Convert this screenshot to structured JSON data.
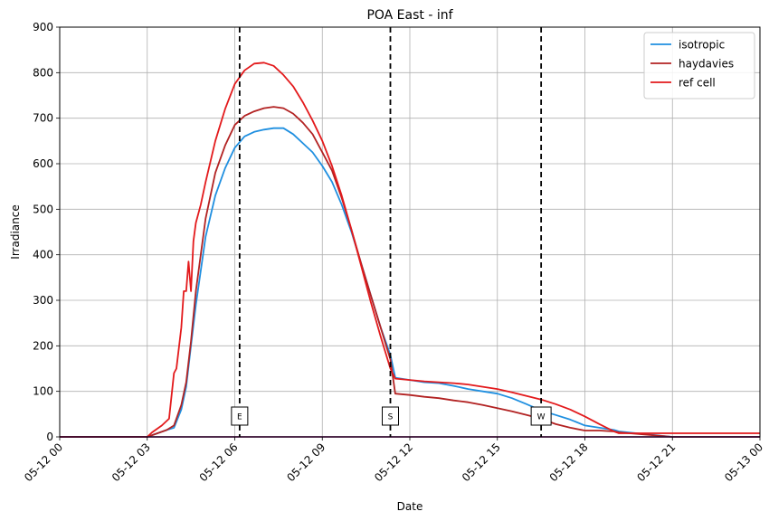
{
  "chart_data": {
    "type": "line",
    "title": "POA East - inf",
    "xlabel": "Date",
    "ylabel": "Irradiance",
    "xlim": [
      "05-12 00:00",
      "05-13 00:00"
    ],
    "ylim": [
      0,
      900
    ],
    "grid": true,
    "legend_position": "top-right",
    "x_ticks": [
      "05-12 00",
      "05-12 03",
      "05-12 06",
      "05-12 09",
      "05-12 12",
      "05-12 15",
      "05-12 18",
      "05-12 21",
      "05-13 00"
    ],
    "y_ticks": [
      0,
      100,
      200,
      300,
      400,
      500,
      600,
      700,
      800,
      900
    ],
    "vertical_markers": [
      {
        "label": "E",
        "x": "05-12 06:10"
      },
      {
        "label": "S",
        "x": "05-12 11:20"
      },
      {
        "label": "W",
        "x": "05-12 16:30"
      }
    ],
    "series": [
      {
        "name": "isotropic",
        "color": "#1f8fe0",
        "x": [
          "05-12 00:00",
          "05-12 03:00",
          "05-12 03:40",
          "05-12 03:55",
          "05-12 04:10",
          "05-12 04:20",
          "05-12 04:30",
          "05-12 04:40",
          "05-12 05:00",
          "05-12 05:20",
          "05-12 05:40",
          "05-12 06:00",
          "05-12 06:20",
          "05-12 06:40",
          "05-12 07:00",
          "05-12 07:20",
          "05-12 07:40",
          "05-12 08:00",
          "05-12 08:20",
          "05-12 08:40",
          "05-12 09:00",
          "05-12 09:20",
          "05-12 09:40",
          "05-12 10:00",
          "05-12 10:20",
          "05-12 10:40",
          "05-12 11:00",
          "05-12 11:20",
          "05-12 11:30",
          "05-12 12:00",
          "05-12 12:30",
          "05-12 13:00",
          "05-12 13:30",
          "05-12 14:00",
          "05-12 14:30",
          "05-12 15:00",
          "05-12 15:30",
          "05-12 16:00",
          "05-12 16:30",
          "05-12 17:00",
          "05-12 17:30",
          "05-12 18:00",
          "05-12 18:30",
          "05-12 19:00",
          "05-12 19:10",
          "05-12 21:00",
          "05-13 00:00"
        ],
        "y": [
          0,
          0,
          15,
          20,
          60,
          110,
          200,
          290,
          440,
          530,
          590,
          635,
          660,
          670,
          675,
          678,
          678,
          665,
          645,
          625,
          595,
          560,
          510,
          450,
          380,
          310,
          240,
          180,
          130,
          125,
          120,
          118,
          112,
          105,
          100,
          95,
          85,
          72,
          58,
          48,
          38,
          25,
          20,
          15,
          12,
          0,
          0
        ]
      },
      {
        "name": "haydavies",
        "color": "#b22222",
        "x": [
          "05-12 00:00",
          "05-12 03:00",
          "05-12 03:40",
          "05-12 03:55",
          "05-12 04:10",
          "05-12 04:20",
          "05-12 04:30",
          "05-12 04:40",
          "05-12 05:00",
          "05-12 05:20",
          "05-12 05:40",
          "05-12 06:00",
          "05-12 06:20",
          "05-12 06:40",
          "05-12 07:00",
          "05-12 07:20",
          "05-12 07:40",
          "05-12 08:00",
          "05-12 08:20",
          "05-12 08:40",
          "05-12 09:00",
          "05-12 09:20",
          "05-12 09:40",
          "05-12 10:00",
          "05-12 10:20",
          "05-12 10:40",
          "05-12 11:00",
          "05-12 11:20",
          "05-12 11:30",
          "05-12 12:00",
          "05-12 12:30",
          "05-12 13:00",
          "05-12 13:30",
          "05-12 14:00",
          "05-12 14:30",
          "05-12 15:00",
          "05-12 15:30",
          "05-12 16:00",
          "05-12 16:30",
          "05-12 17:00",
          "05-12 17:30",
          "05-12 18:00",
          "05-12 18:30",
          "05-12 19:00",
          "05-12 19:10",
          "05-12 21:00",
          "05-13 00:00"
        ],
        "y": [
          0,
          0,
          15,
          25,
          70,
          120,
          210,
          320,
          480,
          580,
          640,
          685,
          705,
          715,
          722,
          725,
          722,
          710,
          690,
          665,
          625,
          585,
          525,
          455,
          380,
          310,
          240,
          170,
          95,
          92,
          88,
          85,
          80,
          76,
          70,
          63,
          56,
          48,
          40,
          28,
          20,
          14,
          14,
          12,
          10,
          0,
          0
        ]
      },
      {
        "name": "ref cell",
        "color": "#e31a1c",
        "x": [
          "05-12 00:00",
          "05-12 03:00",
          "05-12 03:10",
          "05-12 03:30",
          "05-12 03:45",
          "05-12 03:55",
          "05-12 04:00",
          "05-12 04:10",
          "05-12 04:15",
          "05-12 04:20",
          "05-12 04:25",
          "05-12 04:30",
          "05-12 04:35",
          "05-12 04:40",
          "05-12 04:50",
          "05-12 05:00",
          "05-12 05:20",
          "05-12 05:40",
          "05-12 06:00",
          "05-12 06:20",
          "05-12 06:40",
          "05-12 07:00",
          "05-12 07:20",
          "05-12 07:40",
          "05-12 08:00",
          "05-12 08:20",
          "05-12 08:40",
          "05-12 09:00",
          "05-12 09:20",
          "05-12 09:40",
          "05-12 10:00",
          "05-12 10:20",
          "05-12 10:40",
          "05-12 11:00",
          "05-12 11:20",
          "05-12 11:30",
          "05-12 12:00",
          "05-12 12:30",
          "05-12 13:00",
          "05-12 13:30",
          "05-12 14:00",
          "05-12 14:30",
          "05-12 15:00",
          "05-12 15:30",
          "05-12 16:00",
          "05-12 16:30",
          "05-12 17:00",
          "05-12 17:30",
          "05-12 18:00",
          "05-12 18:30",
          "05-12 19:00",
          "05-12 19:10",
          "05-12 21:00",
          "05-13 00:00"
        ],
        "y": [
          0,
          0,
          10,
          25,
          40,
          140,
          150,
          240,
          320,
          320,
          385,
          320,
          430,
          470,
          510,
          560,
          650,
          720,
          775,
          805,
          820,
          822,
          815,
          795,
          770,
          735,
          695,
          650,
          595,
          530,
          455,
          375,
          295,
          220,
          150,
          128,
          125,
          122,
          120,
          118,
          115,
          110,
          105,
          98,
          90,
          82,
          72,
          60,
          45,
          28,
          12,
          8,
          8,
          8
        ]
      },
      {
        "name": "",
        "color": "#7b1d6f",
        "x": [
          "05-12 00:00",
          "05-13 00:00"
        ],
        "y": [
          0,
          0
        ]
      }
    ]
  }
}
